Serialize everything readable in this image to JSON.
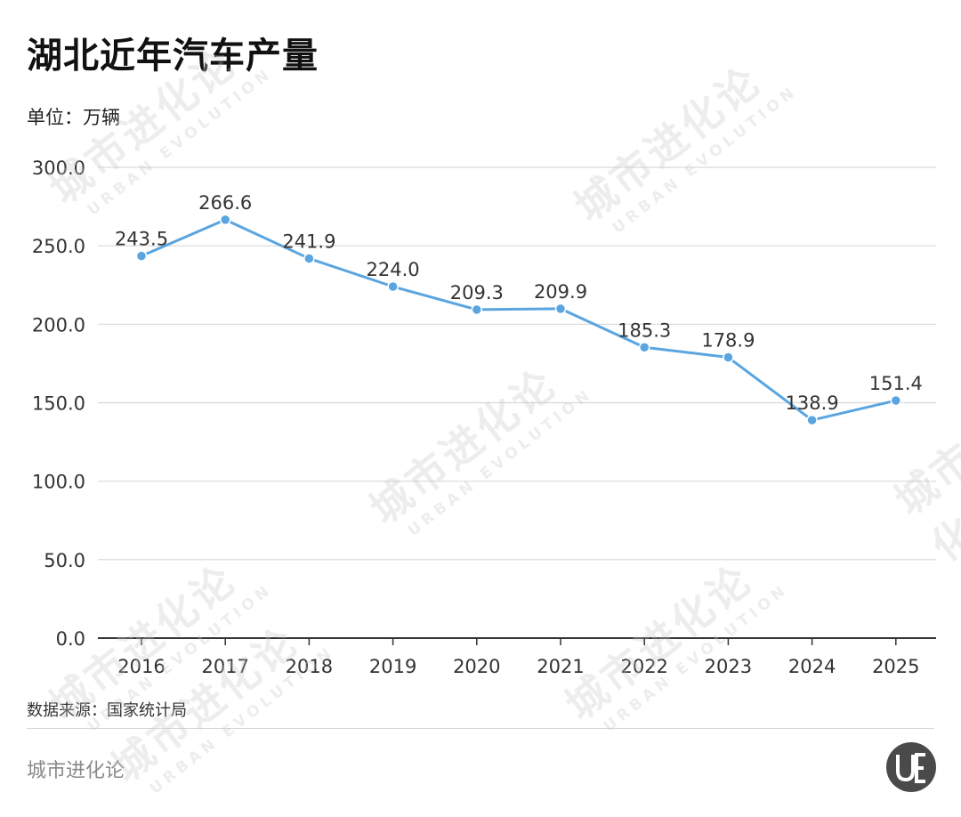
{
  "header": {
    "title": "湖北近年汽车产量",
    "unit": "单位：万辆"
  },
  "footer": {
    "source": "数据来源：国家统计局",
    "brand": "城市进化论"
  },
  "watermark": {
    "text": "城市进化论",
    "subtext": "URBAN EVOLUTION"
  },
  "colors": {
    "line": "#5aa5e0",
    "grid": "#d9d9d9",
    "axis": "#333333"
  },
  "chart_data": {
    "type": "line",
    "title": "湖北近年汽车产量",
    "ylabel": "单位：万辆",
    "xlabel": "",
    "categories": [
      "2016",
      "2017",
      "2018",
      "2019",
      "2020",
      "2021",
      "2022",
      "2023",
      "2024",
      "2025"
    ],
    "values": [
      243.5,
      266.6,
      241.9,
      224.0,
      209.3,
      209.9,
      185.3,
      178.9,
      138.9,
      151.4
    ],
    "value_labels": [
      "243.5",
      "266.6",
      "241.9",
      "224.0",
      "209.3",
      "209.9",
      "185.3",
      "178.9",
      "138.9",
      "151.4"
    ],
    "ylim": [
      0,
      300
    ],
    "yticks": [
      0,
      50,
      100,
      150,
      200,
      250,
      300
    ],
    "ytick_labels": [
      "0.0",
      "50.0",
      "100.0",
      "150.0",
      "200.0",
      "250.0",
      "300.0"
    ],
    "grid": true,
    "legend": "none"
  }
}
